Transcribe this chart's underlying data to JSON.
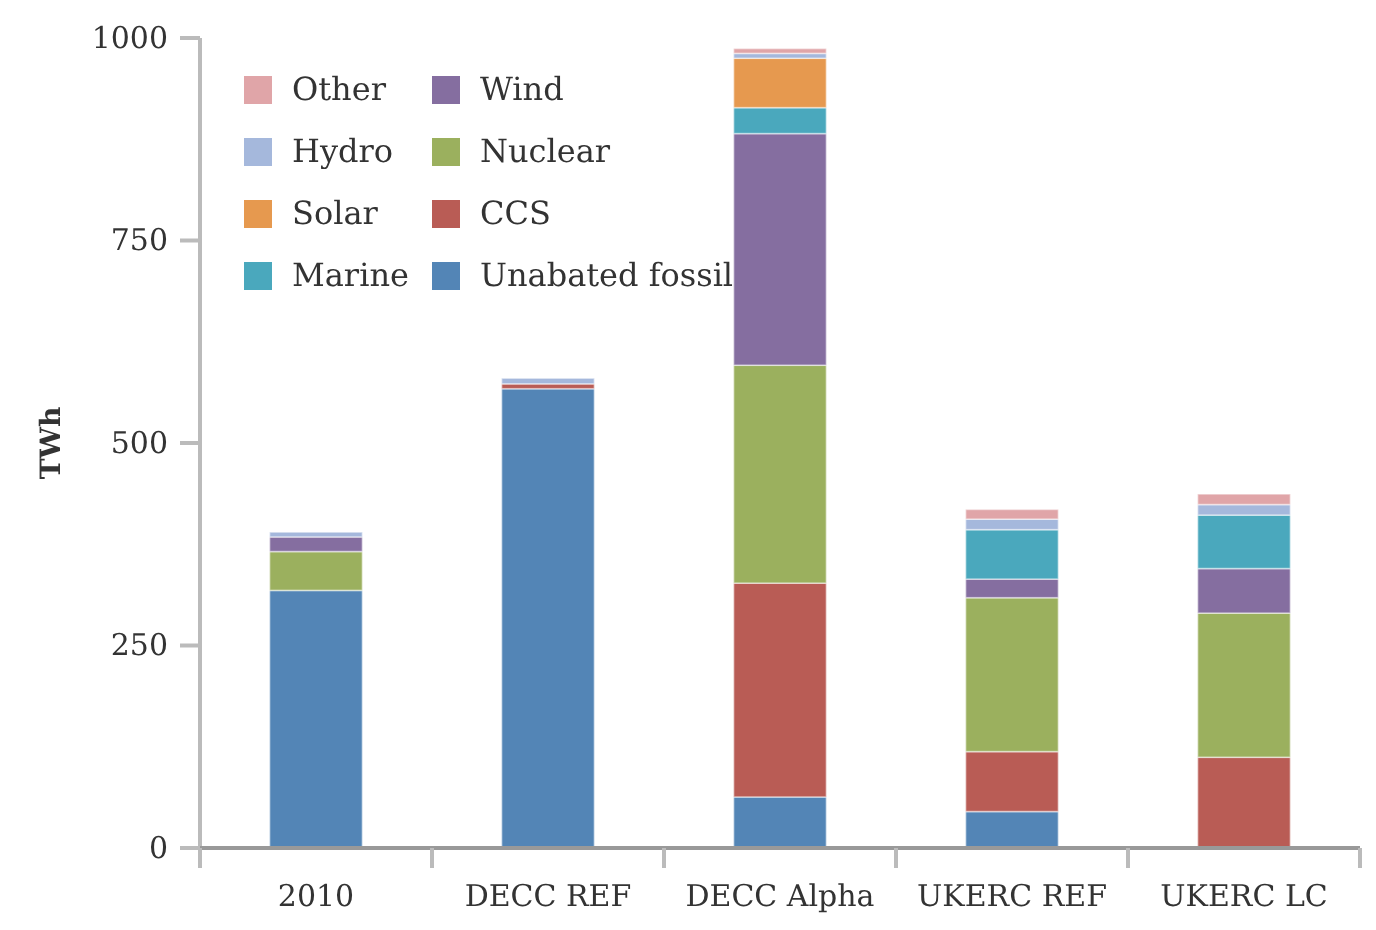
{
  "chart_data": {
    "type": "bar",
    "stacked": true,
    "ylabel": "TWh",
    "categories": [
      "2010",
      "DECC REF",
      "DECC Alpha",
      "UKERC REF",
      "UKERC LC"
    ],
    "series": [
      {
        "name": "Unabated fossil",
        "color": "#5385b6",
        "values": [
          318,
          567,
          63,
          45,
          0
        ]
      },
      {
        "name": "CCS",
        "color": "#b95c55",
        "values": [
          0,
          6,
          264,
          74,
          112
        ]
      },
      {
        "name": "Nuclear",
        "color": "#9bb05e",
        "values": [
          48,
          0,
          269,
          190,
          178
        ]
      },
      {
        "name": "Wind",
        "color": "#856ea0",
        "values": [
          18,
          0,
          286,
          23,
          55
        ]
      },
      {
        "name": "Marine",
        "color": "#4aa8bd",
        "values": [
          0,
          0,
          32,
          61,
          66
        ]
      },
      {
        "name": "Solar",
        "color": "#e6994f",
        "values": [
          0,
          0,
          61,
          0,
          0
        ]
      },
      {
        "name": "Hydro",
        "color": "#a5b8dc",
        "values": [
          6,
          7,
          6,
          13,
          13
        ]
      },
      {
        "name": "Other",
        "color": "#e0a5a8",
        "values": [
          0,
          0,
          6,
          12,
          13
        ]
      }
    ],
    "ylim": [
      0,
      1000
    ],
    "yticks": [
      0,
      250,
      500,
      750,
      1000
    ],
    "grid": false,
    "legend": "top left"
  }
}
